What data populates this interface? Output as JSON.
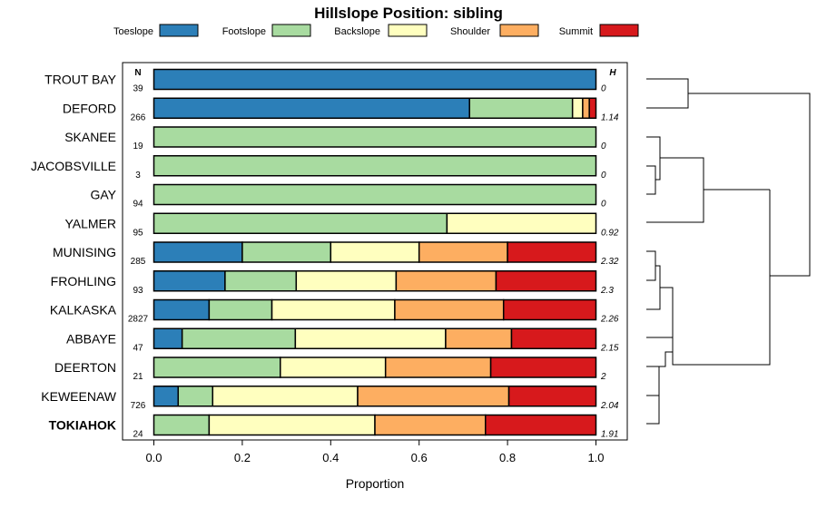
{
  "chart_data": {
    "type": "stacked-bar",
    "title": "Hillslope Position: sibling",
    "xlabel": "Proportion",
    "xlim": [
      0,
      1
    ],
    "xticks": [
      "0.0",
      "0.2",
      "0.4",
      "0.6",
      "0.8",
      "1.0"
    ],
    "xtick_values": [
      0,
      0.2,
      0.4,
      0.6,
      0.8,
      1.0
    ],
    "n_header": "N",
    "h_header": "H",
    "legend": [
      {
        "label": "Toeslope",
        "color": "#2c7fb8"
      },
      {
        "label": "Footslope",
        "color": "#a8dba0"
      },
      {
        "label": "Backslope",
        "color": "#ffffbf"
      },
      {
        "label": "Shoulder",
        "color": "#fdae61"
      },
      {
        "label": "Summit",
        "color": "#d7191c"
      }
    ],
    "rows": [
      {
        "label": "TROUT BAY",
        "n": "39",
        "h": "0",
        "bold": false,
        "values": [
          1.0,
          0,
          0,
          0,
          0
        ]
      },
      {
        "label": "DEFORD",
        "n": "266",
        "h": "1.14",
        "bold": false,
        "values": [
          0.714,
          0.233,
          0.023,
          0.015,
          0.015
        ]
      },
      {
        "label": "SKANEE",
        "n": "19",
        "h": "0",
        "bold": false,
        "values": [
          0,
          1.0,
          0,
          0,
          0
        ]
      },
      {
        "label": "JACOBSVILLE",
        "n": "3",
        "h": "0",
        "bold": false,
        "values": [
          0,
          1.0,
          0,
          0,
          0
        ]
      },
      {
        "label": "GAY",
        "n": "94",
        "h": "0",
        "bold": false,
        "values": [
          0,
          1.0,
          0,
          0,
          0
        ]
      },
      {
        "label": "YALMER",
        "n": "95",
        "h": "0.92",
        "bold": false,
        "values": [
          0,
          0.663,
          0.337,
          0,
          0
        ]
      },
      {
        "label": "MUNISING",
        "n": "285",
        "h": "2.32",
        "bold": false,
        "values": [
          0.2,
          0.2,
          0.2,
          0.2,
          0.2
        ]
      },
      {
        "label": "FROHLING",
        "n": "93",
        "h": "2.3",
        "bold": false,
        "values": [
          0.161,
          0.161,
          0.226,
          0.226,
          0.226
        ]
      },
      {
        "label": "KALKASKA",
        "n": "2827",
        "h": "2.26",
        "bold": false,
        "values": [
          0.125,
          0.142,
          0.278,
          0.246,
          0.209
        ]
      },
      {
        "label": "ABBAYE",
        "n": "47",
        "h": "2.15",
        "bold": false,
        "values": [
          0.064,
          0.256,
          0.34,
          0.149,
          0.191
        ]
      },
      {
        "label": "DEERTON",
        "n": "21",
        "h": "2",
        "bold": false,
        "values": [
          0,
          0.286,
          0.238,
          0.238,
          0.238
        ]
      },
      {
        "label": "KEWEENAW",
        "n": "726",
        "h": "2.04",
        "bold": false,
        "values": [
          0.055,
          0.078,
          0.328,
          0.342,
          0.197
        ]
      },
      {
        "label": "TOKIAHOK",
        "n": "24",
        "h": "1.91",
        "bold": true,
        "values": [
          0,
          0.125,
          0.375,
          0.25,
          0.25
        ]
      }
    ]
  }
}
